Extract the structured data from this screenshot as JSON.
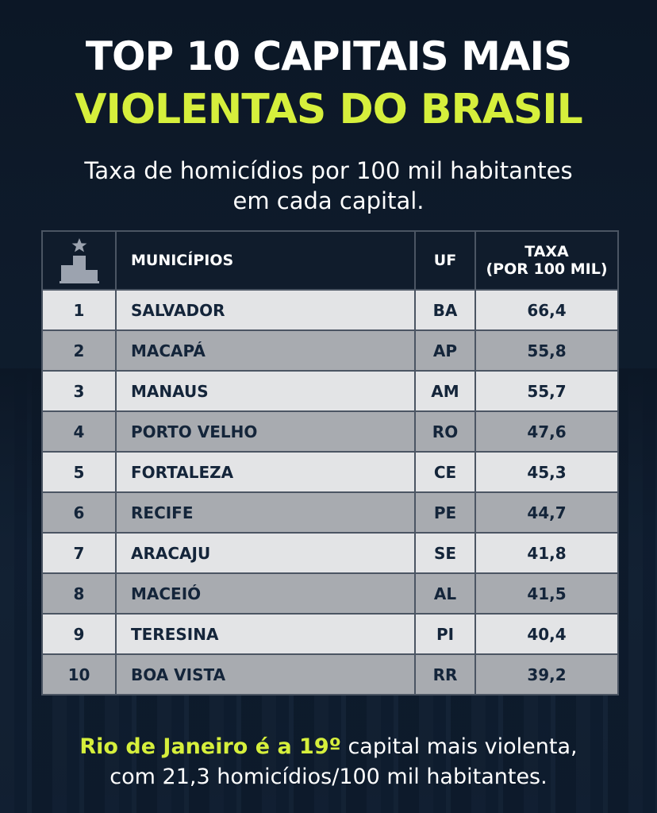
{
  "title_line1": "TOP 10 CAPITAIS MAIS",
  "title_line2": "VIOLENTAS DO BRASIL",
  "subtitle_line1": "Taxa de homicídios por 100 mil habitantes",
  "subtitle_line2": "em cada capital.",
  "table": {
    "header": {
      "rank_icon": "podium-star-icon",
      "city": "MUNICÍPIOS",
      "uf": "UF",
      "rate_line1": "TAXA",
      "rate_line2": "(POR 100 MIL)"
    },
    "rows": [
      {
        "rank": "1",
        "city": "SALVADOR",
        "uf": "BA",
        "rate": "66,4"
      },
      {
        "rank": "2",
        "city": "MACAPÁ",
        "uf": "AP",
        "rate": "55,8"
      },
      {
        "rank": "3",
        "city": "MANAUS",
        "uf": "AM",
        "rate": "55,7"
      },
      {
        "rank": "4",
        "city": "PORTO VELHO",
        "uf": "RO",
        "rate": "47,6"
      },
      {
        "rank": "5",
        "city": "FORTALEZA",
        "uf": "CE",
        "rate": "45,3"
      },
      {
        "rank": "6",
        "city": "RECIFE",
        "uf": "PE",
        "rate": "44,7"
      },
      {
        "rank": "7",
        "city": "ARACAJU",
        "uf": "SE",
        "rate": "41,8"
      },
      {
        "rank": "8",
        "city": "MACEIÓ",
        "uf": "AL",
        "rate": "41,5"
      },
      {
        "rank": "9",
        "city": "TERESINA",
        "uf": "PI",
        "rate": "40,4"
      },
      {
        "rank": "10",
        "city": "BOA VISTA",
        "uf": "RR",
        "rate": "39,2"
      }
    ]
  },
  "footer": {
    "highlight": "Rio de Janeiro é a 19º",
    "rest_line1": " capital mais violenta,",
    "line2": "com 21,3 homicídios/100 mil habitantes."
  },
  "colors": {
    "background": "#0c1726",
    "accent": "#d6ef3c",
    "row_light": "#e3e4e6",
    "row_dark": "#a8abb0",
    "row_text": "#14253a"
  }
}
